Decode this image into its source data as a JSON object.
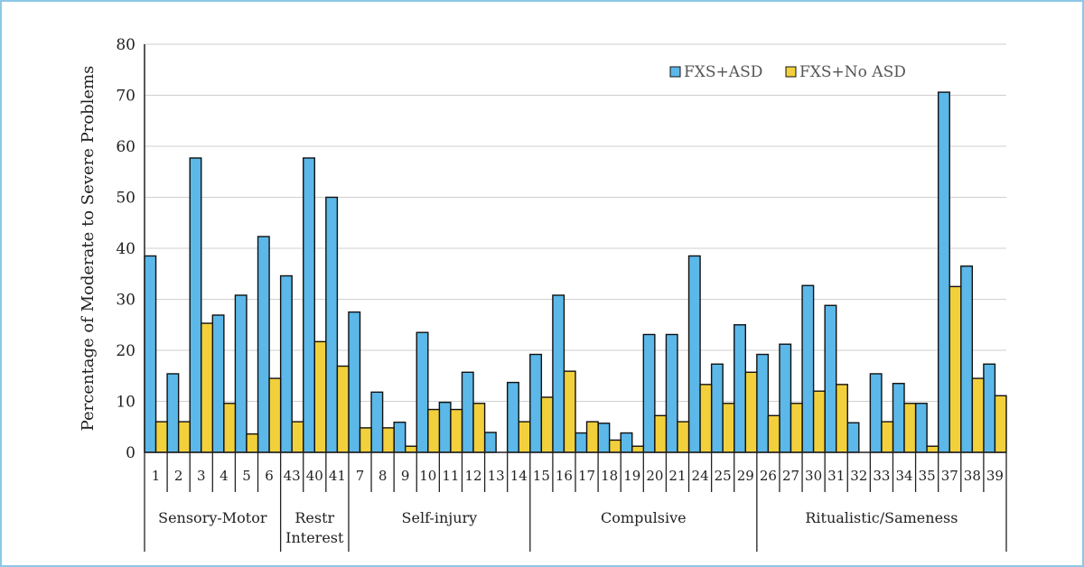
{
  "chart_data": {
    "type": "bar",
    "ylabel": "Percentage of Moderate to Severe Problems",
    "xlabel": "",
    "ylim": [
      0,
      80
    ],
    "yticks": [
      0,
      10,
      20,
      30,
      40,
      50,
      60,
      70,
      80
    ],
    "grid": true,
    "legend_position": "top-right",
    "categories": [
      "1",
      "2",
      "3",
      "4",
      "5",
      "6",
      "43",
      "40",
      "41",
      "7",
      "8",
      "9",
      "10",
      "11",
      "12",
      "13",
      "14",
      "15",
      "16",
      "17",
      "18",
      "19",
      "20",
      "21",
      "24",
      "25",
      "29",
      "26",
      "27",
      "30",
      "31",
      "32",
      "33",
      "34",
      "35",
      "37",
      "38",
      "39"
    ],
    "series": [
      {
        "name": "FXS+ASD",
        "color": "#5bb8e8",
        "values": [
          38.5,
          15.4,
          57.7,
          26.9,
          30.8,
          42.3,
          34.6,
          57.7,
          50.0,
          27.5,
          11.8,
          5.9,
          23.5,
          9.8,
          15.7,
          3.9,
          13.7,
          19.2,
          30.8,
          3.8,
          5.7,
          3.8,
          23.1,
          23.1,
          38.5,
          17.3,
          25.0,
          19.2,
          21.2,
          32.7,
          28.8,
          5.8,
          15.4,
          13.5,
          9.6,
          70.6,
          36.5,
          17.3
        ]
      },
      {
        "name": "FXS+No ASD",
        "color": "#f2d03c",
        "values": [
          6.0,
          6.0,
          25.3,
          9.6,
          3.6,
          14.5,
          6.0,
          21.7,
          16.9,
          4.8,
          4.8,
          1.2,
          8.4,
          8.4,
          9.6,
          0,
          6.0,
          10.8,
          15.9,
          6.0,
          2.4,
          1.2,
          7.2,
          6.0,
          13.3,
          9.6,
          15.7,
          7.2,
          9.6,
          12.0,
          13.3,
          0,
          6.0,
          9.6,
          1.2,
          32.5,
          14.5,
          11.1
        ]
      }
    ],
    "groups": [
      {
        "label": "Sensory-Motor",
        "count": 6
      },
      {
        "label": "Restr\nInterest",
        "count": 3
      },
      {
        "label": "Self-injury",
        "count": 8
      },
      {
        "label": "Compulsive",
        "count": 10
      },
      {
        "label": "Ritualistic/Sameness",
        "count": 11
      }
    ]
  }
}
